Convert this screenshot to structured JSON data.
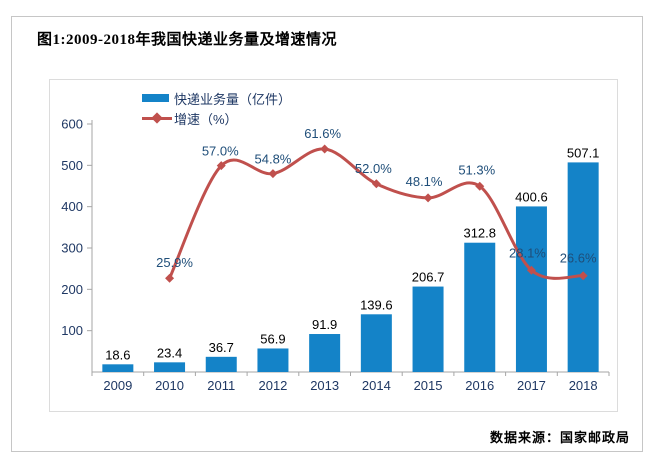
{
  "panel": {
    "title": "图1:2009-2018年我国快递业务量及增速情况",
    "source": "数据来源：国家邮政局"
  },
  "legend": {
    "bars_label": "快递业务量（亿件）",
    "line_label": "增速（%）"
  },
  "colors": {
    "bar": "#1483C8",
    "line": "#C0504D",
    "pct_label": "#1F4E79",
    "axis_label": "#1F3864",
    "value_label": "#000000",
    "axis": "#A6A6A6"
  },
  "chart_data": {
    "type": "bar",
    "subtype": "bar-line-combo",
    "title": "图1:2009-2018年我国快递业务量及增速情况",
    "categories": [
      "2009",
      "2010",
      "2011",
      "2012",
      "2013",
      "2014",
      "2015",
      "2016",
      "2017",
      "2018"
    ],
    "series": [
      {
        "name": "快递业务量（亿件）",
        "type": "bar",
        "values": [
          18.6,
          23.4,
          36.7,
          56.9,
          91.9,
          139.6,
          206.7,
          312.8,
          400.6,
          507.1
        ],
        "labels": [
          "18.6",
          "23.4",
          "36.7",
          "56.9",
          "91.9",
          "139.6",
          "206.7",
          "312.8",
          "400.6",
          "507.1"
        ]
      },
      {
        "name": "增速（%）",
        "type": "line",
        "values": [
          null,
          25.9,
          57.0,
          54.8,
          61.6,
          52.0,
          48.1,
          51.3,
          28.1,
          26.6
        ],
        "labels": [
          null,
          "25.9%",
          "57.0%",
          "54.8%",
          "61.6%",
          "52.0%",
          "48.1%",
          "51.3%",
          "28.1%",
          "26.6%"
        ]
      }
    ],
    "xlabel": "",
    "ylabel": "",
    "y_ticks": [
      100,
      200,
      300,
      400,
      500,
      600
    ],
    "ylim": [
      0,
      600
    ],
    "y2lim_percent": [
      0,
      70
    ],
    "grid": false,
    "legend_position": "top-left-inside",
    "source": "数据来源：国家邮政局"
  }
}
